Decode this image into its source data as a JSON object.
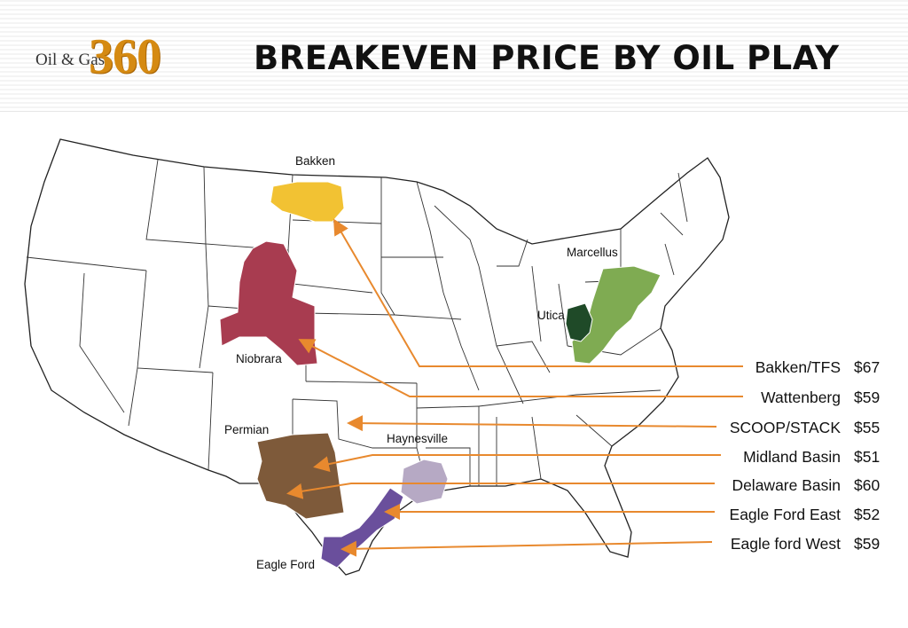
{
  "header": {
    "logo_small": "Oil & Gas",
    "logo_big": "360",
    "title": "BREAKEVEN PRICE BY OIL PLAY"
  },
  "map_labels": {
    "bakken": "Bakken",
    "niobrara": "Niobrara",
    "permian": "Permian",
    "haynesville": "Haynesville",
    "eagle_ford": "Eagle Ford",
    "marcellus": "Marcellus",
    "utica": "Utica"
  },
  "breakevens": [
    {
      "play": "Bakken/TFS",
      "price": "$67"
    },
    {
      "play": "Wattenberg",
      "price": "$59"
    },
    {
      "play": "SCOOP/STACK",
      "price": "$55"
    },
    {
      "play": "Midland Basin",
      "price": "$51"
    },
    {
      "play": "Delaware Basin",
      "price": "$60"
    },
    {
      "play": "Eagle Ford East",
      "price": "$52"
    },
    {
      "play": "Eagle ford West",
      "price": "$59"
    }
  ],
  "colors": {
    "bakken": "#f2c233",
    "niobrara": "#a83c50",
    "permian": "#7e5a3a",
    "haynesville": "#b6a9c4",
    "eagle_ford": "#6a4f9c",
    "marcellus": "#7fab52",
    "utica": "#1f4a28",
    "arrow": "#e8892e",
    "logo": "#d58a12"
  }
}
